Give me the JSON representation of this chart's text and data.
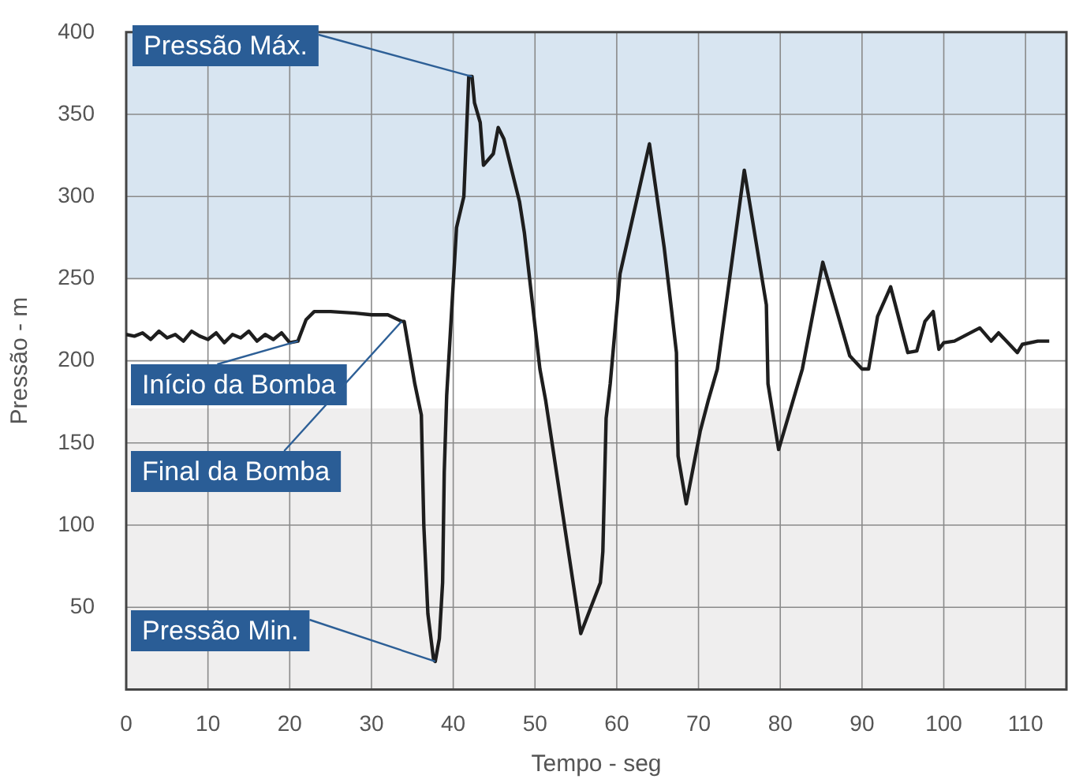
{
  "chart_data": {
    "type": "line",
    "xlabel": "Tempo - seg",
    "ylabel": "Pressão - m",
    "xlim": [
      0,
      115
    ],
    "xticks": [
      0,
      10,
      20,
      30,
      40,
      50,
      60,
      70,
      80,
      90,
      100,
      110
    ],
    "ylim": [
      0,
      400
    ],
    "yticks": [
      50,
      100,
      150,
      200,
      250,
      300,
      350,
      400
    ],
    "grid": true,
    "legend": false,
    "marker": "none",
    "line_style": "solid",
    "bands": [
      {
        "axis": "y",
        "from": 250,
        "to": 400,
        "color": "#d8e5f1"
      },
      {
        "axis": "y",
        "from": 0,
        "to": 171,
        "color": "#efeeee"
      }
    ],
    "annotations": [
      {
        "text": "Pressão Máx.",
        "x": 42.3,
        "y": 373
      },
      {
        "text": "Início da Bomba",
        "x": 21,
        "y": 212
      },
      {
        "text": "Final da Bomba",
        "x": 33.7,
        "y": 224
      },
      {
        "text": "Pressão Min.",
        "x": 37.8,
        "y": 17
      }
    ],
    "series": [
      {
        "color": "#1e1e1e",
        "x": [
          0,
          1,
          2,
          3,
          4,
          5,
          6,
          7,
          8,
          9,
          10,
          11,
          12,
          13,
          14,
          15,
          16,
          17,
          18,
          19,
          20,
          21,
          22,
          23,
          25,
          28,
          30,
          32,
          33.7,
          34,
          35.3,
          36.1,
          36.4,
          36.9,
          37.6,
          37.8,
          38.3,
          38.7,
          38.9,
          39.2,
          40.4,
          41.3,
          41.9,
          42.3,
          42.6,
          43.3,
          43.7,
          44.9,
          45.5,
          46.2,
          48.1,
          48.7,
          50.6,
          51.3,
          55.6,
          58,
          58.3,
          58.7,
          59.2,
          60.4,
          64,
          65.8,
          66.7,
          67.3,
          67.5,
          68.5,
          70.2,
          71.2,
          72.3,
          75.6,
          78.3,
          78.5,
          79.8,
          82.7,
          85.2,
          88.5,
          90,
          90.8,
          91.9,
          93.5,
          95.6,
          96.7,
          97.7,
          98.7,
          99.4,
          100,
          101.3,
          104.4,
          105.8,
          106.7,
          109,
          109.6,
          111.5,
          112.9
        ],
        "values": [
          216,
          215,
          217,
          213,
          218,
          214,
          216,
          212,
          218,
          215,
          213,
          217,
          211,
          216,
          214,
          218,
          212,
          216,
          213,
          217,
          211,
          212,
          225,
          230,
          230,
          229,
          228,
          228,
          224,
          224,
          186,
          167,
          100,
          46,
          18,
          17,
          31,
          65,
          132,
          179,
          281,
          300,
          373,
          373,
          357,
          345,
          319,
          326,
          342,
          335,
          297,
          278,
          195,
          176,
          34,
          65,
          84,
          165,
          186,
          253,
          332,
          269,
          231,
          205,
          142,
          113,
          157,
          176,
          195,
          316,
          234,
          186,
          146,
          195,
          260,
          203,
          195,
          195,
          227,
          245,
          205,
          206,
          224,
          230,
          207,
          211,
          212,
          220,
          212,
          217,
          205,
          210,
          212,
          212
        ]
      }
    ]
  }
}
